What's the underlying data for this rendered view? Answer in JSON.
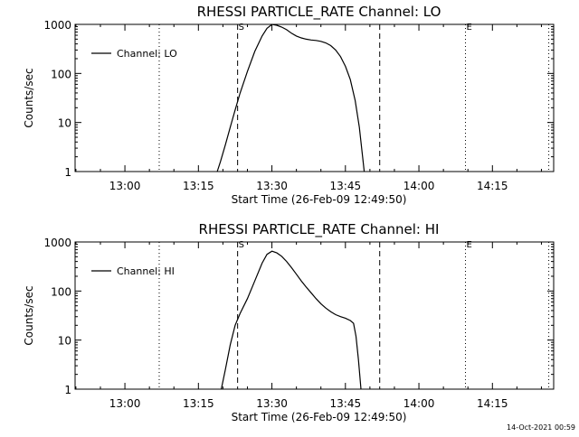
{
  "footer": {
    "timestamp": "14-Oct-2021 00:59"
  },
  "chart_data": [
    {
      "type": "line",
      "title": "RHESSI PARTICLE_RATE Channel: LO",
      "xlabel": "Start Time (26-Feb-09 12:49:50)",
      "ylabel": "Counts/sec",
      "x_unit": "minutes",
      "xlim": [
        "12:49:50",
        "14:27:30"
      ],
      "ylim": [
        1,
        1000
      ],
      "y_scale": "log",
      "x_ticks": [
        "13:00",
        "13:15",
        "13:30",
        "13:45",
        "14:00",
        "14:15"
      ],
      "y_ticks": [
        "1",
        "10",
        "100",
        "1000"
      ],
      "legend": {
        "position": "top-left",
        "label": "Channel: LO"
      },
      "vlines": [
        {
          "time": "13:07:00",
          "style": "dotted",
          "label": ""
        },
        {
          "time": "13:23:00",
          "style": "dashed",
          "label": "S"
        },
        {
          "time": "13:52:00",
          "style": "dashed",
          "label": ""
        },
        {
          "time": "14:09:30",
          "style": "dotted",
          "label": "E"
        },
        {
          "time": "14:26:30",
          "style": "dotted",
          "label": ""
        }
      ],
      "series": [
        {
          "name": "Channel: LO",
          "points": [
            [
              "13:18:50",
              1
            ],
            [
              "13:19:30",
              1.6
            ],
            [
              "13:20:30",
              3.5
            ],
            [
              "13:21:30",
              8
            ],
            [
              "13:22:30",
              18
            ],
            [
              "13:23:30",
              40
            ],
            [
              "13:25:00",
              110
            ],
            [
              "13:26:30",
              280
            ],
            [
              "13:28:00",
              580
            ],
            [
              "13:29:00",
              830
            ],
            [
              "13:30:00",
              1000
            ],
            [
              "13:31:00",
              960
            ],
            [
              "13:32:00",
              880
            ],
            [
              "13:33:00",
              780
            ],
            [
              "13:34:00",
              660
            ],
            [
              "13:35:00",
              580
            ],
            [
              "13:36:00",
              530
            ],
            [
              "13:37:00",
              500
            ],
            [
              "13:38:00",
              480
            ],
            [
              "13:39:00",
              470
            ],
            [
              "13:40:00",
              450
            ],
            [
              "13:41:00",
              420
            ],
            [
              "13:42:00",
              370
            ],
            [
              "13:43:00",
              300
            ],
            [
              "13:44:00",
              220
            ],
            [
              "13:45:00",
              140
            ],
            [
              "13:46:00",
              75
            ],
            [
              "13:47:00",
              28
            ],
            [
              "13:47:50",
              8
            ],
            [
              "13:48:30",
              2
            ],
            [
              "13:48:50",
              1
            ]
          ]
        }
      ]
    },
    {
      "type": "line",
      "title": "RHESSI PARTICLE_RATE Channel: HI",
      "xlabel": "Start Time (26-Feb-09 12:49:50)",
      "ylabel": "Counts/sec",
      "x_unit": "minutes",
      "xlim": [
        "12:49:50",
        "14:27:30"
      ],
      "ylim": [
        1,
        1000
      ],
      "y_scale": "log",
      "x_ticks": [
        "13:00",
        "13:15",
        "13:30",
        "13:45",
        "14:00",
        "14:15"
      ],
      "y_ticks": [
        "1",
        "10",
        "100",
        "1000"
      ],
      "legend": {
        "position": "top-left",
        "label": "Channel: HI"
      },
      "vlines": [
        {
          "time": "13:07:00",
          "style": "dotted",
          "label": ""
        },
        {
          "time": "13:23:00",
          "style": "dashed",
          "label": "S"
        },
        {
          "time": "13:52:00",
          "style": "dashed",
          "label": ""
        },
        {
          "time": "14:09:30",
          "style": "dotted",
          "label": "E"
        },
        {
          "time": "14:26:30",
          "style": "dotted",
          "label": ""
        }
      ],
      "series": [
        {
          "name": "Channel: HI",
          "points": [
            [
              "13:19:40",
              1
            ],
            [
              "13:20:30",
              2.5
            ],
            [
              "13:21:30",
              8
            ],
            [
              "13:22:30",
              20
            ],
            [
              "13:23:30",
              35
            ],
            [
              "13:25:00",
              70
            ],
            [
              "13:26:30",
              160
            ],
            [
              "13:28:00",
              370
            ],
            [
              "13:29:00",
              560
            ],
            [
              "13:30:00",
              650
            ],
            [
              "13:31:00",
              600
            ],
            [
              "13:32:00",
              510
            ],
            [
              "13:33:00",
              400
            ],
            [
              "13:34:00",
              300
            ],
            [
              "13:35:00",
              220
            ],
            [
              "13:36:00",
              160
            ],
            [
              "13:37:00",
              120
            ],
            [
              "13:38:00",
              92
            ],
            [
              "13:39:00",
              70
            ],
            [
              "13:40:00",
              55
            ],
            [
              "13:41:00",
              45
            ],
            [
              "13:42:00",
              38
            ],
            [
              "13:43:00",
              33
            ],
            [
              "13:44:00",
              30
            ],
            [
              "13:45:00",
              28
            ],
            [
              "13:46:00",
              25
            ],
            [
              "13:46:40",
              22
            ],
            [
              "13:47:10",
              12
            ],
            [
              "13:47:40",
              4
            ],
            [
              "13:48:10",
              1
            ]
          ]
        }
      ]
    }
  ]
}
